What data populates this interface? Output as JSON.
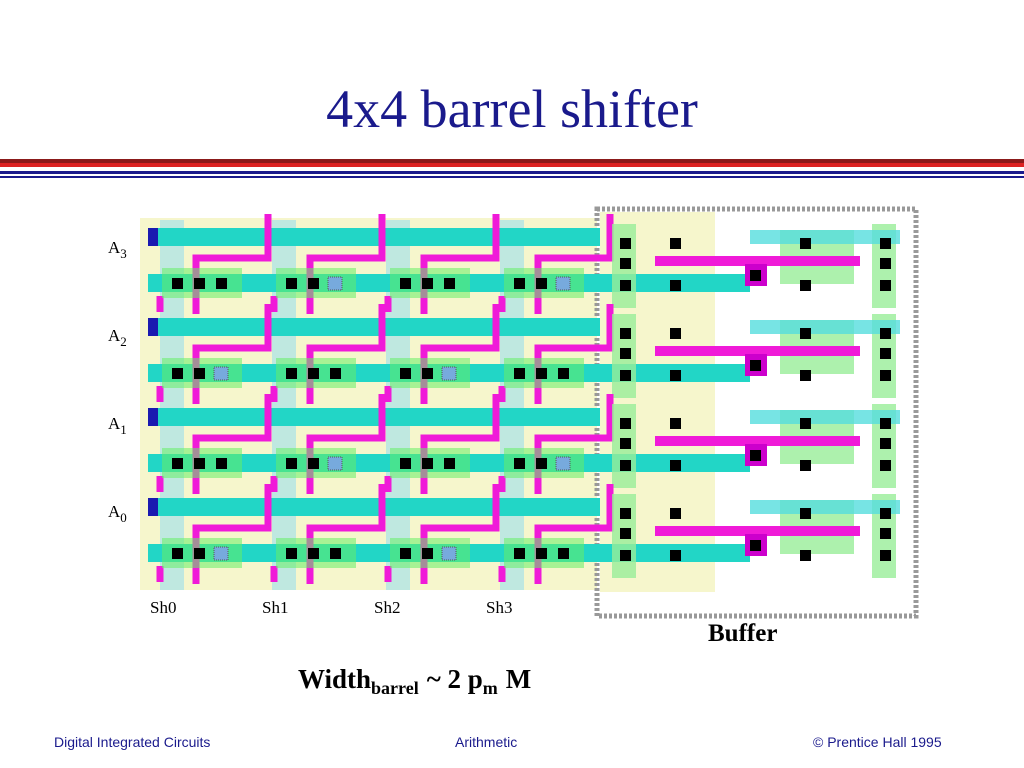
{
  "header": {
    "title": "4x4 barrel shifter"
  },
  "inputs": [
    {
      "base": "A",
      "sub": "3"
    },
    {
      "base": "A",
      "sub": "2"
    },
    {
      "base": "A",
      "sub": "1"
    },
    {
      "base": "A",
      "sub": "0"
    }
  ],
  "shifts": [
    "Sh0",
    "Sh1",
    "Sh2",
    "Sh3"
  ],
  "buffer_label": "Buffer",
  "formula": {
    "word": "Width",
    "word_sub": "barrel",
    "middle": "~ 2 p",
    "middle_sub": "m",
    "end": "M"
  },
  "footer": {
    "left": "Digital Integrated Circuits",
    "center": "Arithmetic",
    "right": "© Prentice Hall 1995"
  }
}
